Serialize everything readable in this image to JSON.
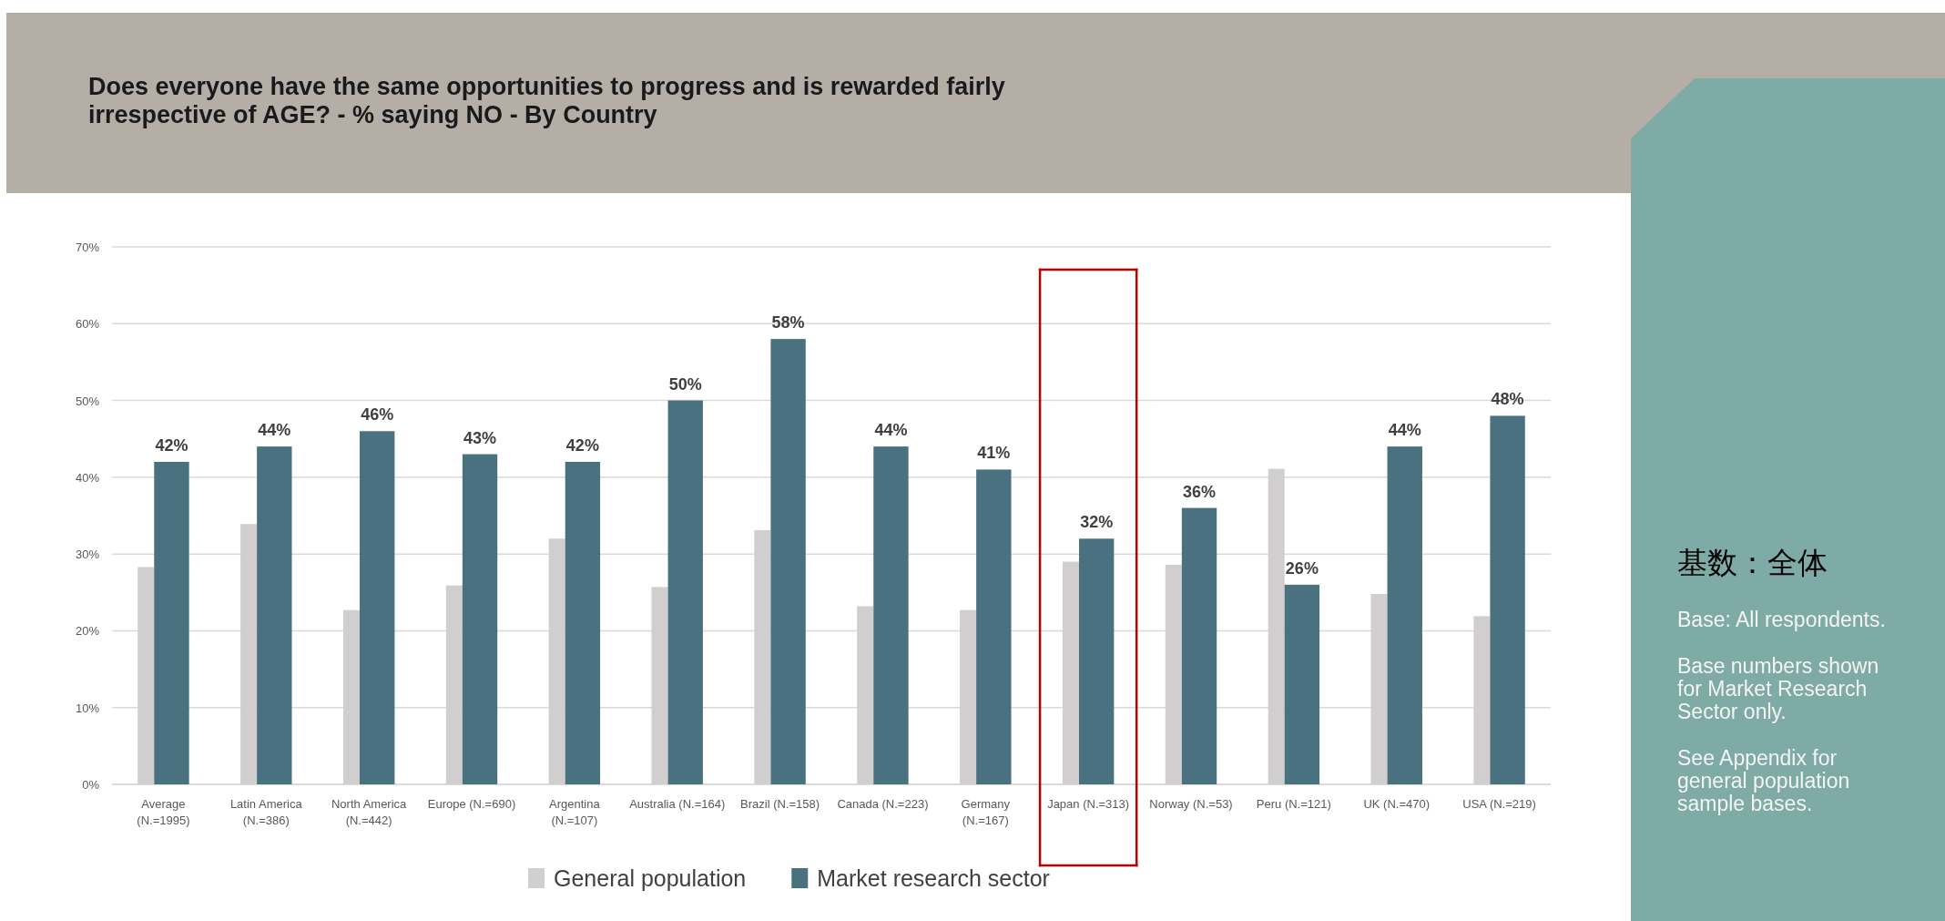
{
  "chart_data": {
    "type": "bar",
    "title": "Does everyone have the same opportunities to progress and is rewarded fairly irrespective of AGE? - % saying NO - By Country",
    "categories": [
      "Average (N.=1995)",
      "Latin America (N.=386)",
      "North America (N.=442)",
      "Europe (N.=690)",
      "Argentina (N.=107)",
      "Australia (N.=164)",
      "Brazil (N.=158)",
      "Canada (N.=223)",
      "Germany (N.=167)",
      "Japan (N.=313)",
      "Norway (N.=53)",
      "Peru (N.=121)",
      "UK (N.=470)",
      "USA (N.=219)"
    ],
    "series": [
      {
        "name": "General population",
        "color": "#d0cecf",
        "values": [
          28.3,
          33.9,
          22.7,
          25.9,
          32,
          25.7,
          33.1,
          23.2,
          22.7,
          29.0,
          28.6,
          41.1,
          24.8,
          21.9
        ]
      },
      {
        "name": "Market research sector",
        "color": "#4a717f",
        "values": [
          42,
          44,
          46,
          43,
          42,
          50,
          58,
          44,
          41,
          32,
          36,
          26,
          44,
          48
        ],
        "value_labels": [
          "42%",
          "44%",
          "46%",
          "43%",
          "42%",
          "50%",
          "58%",
          "44%",
          "41%",
          "32%",
          "36%",
          "26%",
          "44%",
          "48%"
        ]
      }
    ],
    "ylim": [
      0,
      70
    ],
    "yticks": [
      {
        "value": 0,
        "label": "0%"
      },
      {
        "value": 10,
        "label": "10%"
      },
      {
        "value": 20,
        "label": "20%"
      },
      {
        "value": 30,
        "label": "30%"
      },
      {
        "value": 40,
        "label": "40%"
      },
      {
        "value": 50,
        "label": "50%"
      },
      {
        "value": 60,
        "label": "60%"
      },
      {
        "value": 70,
        "label": "70%"
      }
    ],
    "grid": "y",
    "legend": "bottom",
    "annotations": [
      "基数：全体",
      "Base: All respondents.",
      "Base numbers shown for Market Research Sector only.",
      "See Appendix for general population sample bases."
    ]
  }
}
